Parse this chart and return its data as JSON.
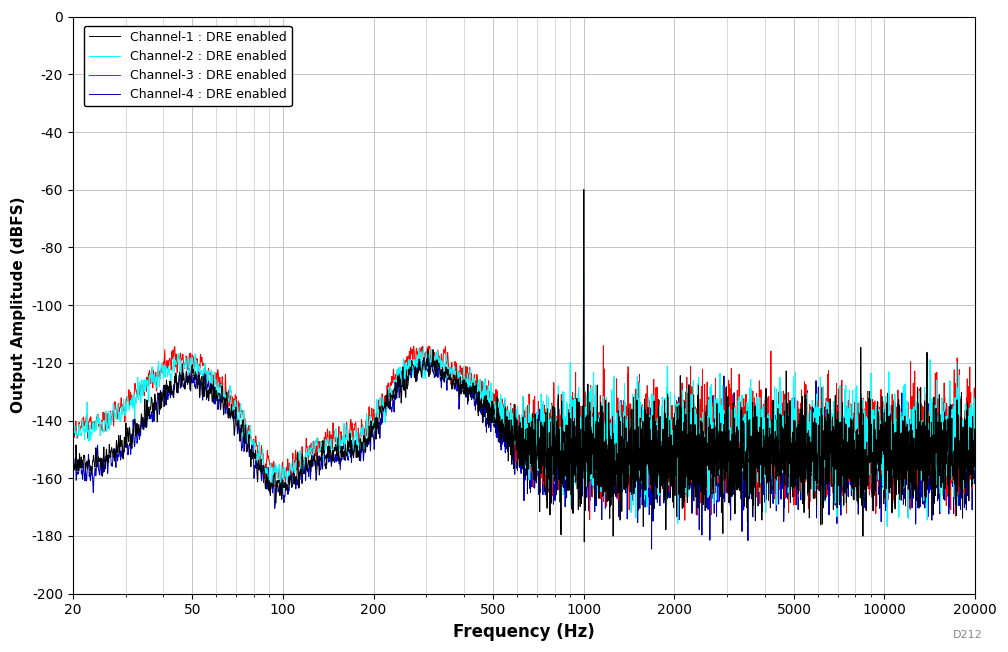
{
  "xlabel": "Frequency (Hz)",
  "ylabel": "Output Amplitude (dBFS)",
  "xlim": [
    20,
    20000
  ],
  "ylim": [
    -200,
    0
  ],
  "yticks": [
    0,
    -20,
    -40,
    -60,
    -80,
    -100,
    -120,
    -140,
    -160,
    -180,
    -200
  ],
  "xticks": [
    20,
    50,
    100,
    200,
    500,
    1000,
    2000,
    5000,
    10000,
    20000
  ],
  "xticklabels": [
    "20",
    "50",
    "100",
    "200",
    "500",
    "1000",
    "2000",
    "5000",
    "10000",
    "20000"
  ],
  "channels": [
    {
      "label": "Channel-1 : DRE enabled",
      "color": "#000000"
    },
    {
      "label": "Channel-2 : DRE enabled",
      "color": "#00FFFF"
    },
    {
      "label": "Channel-3 : DRE enabled",
      "color": "#FF0000"
    },
    {
      "label": "Channel-4 : DRE enabled",
      "color": "#0000BB"
    }
  ],
  "signal_freq": 1000,
  "signal_level": -60,
  "noise_floor": -148,
  "background_color": "#FFFFFF",
  "grid_color": "#BBBBBB",
  "watermark": "D212"
}
